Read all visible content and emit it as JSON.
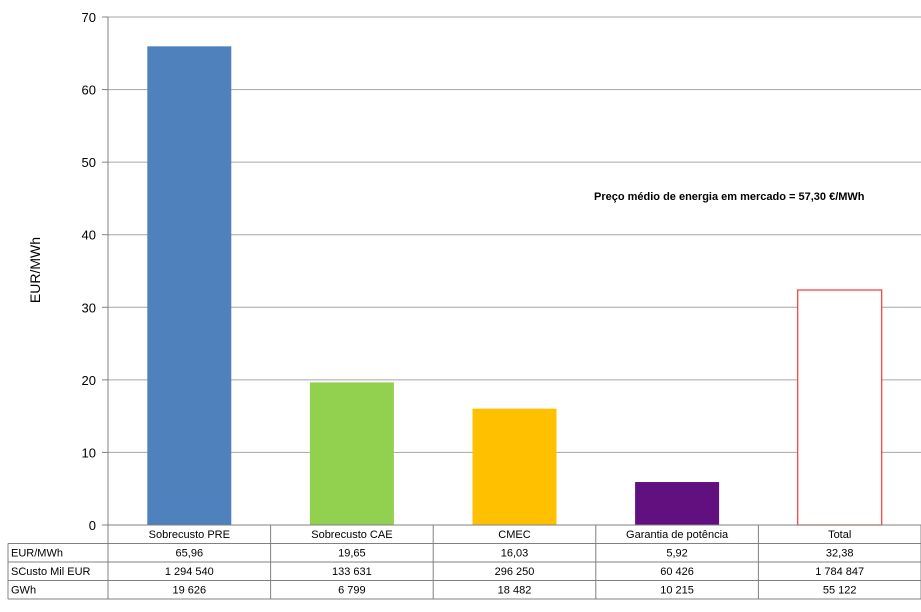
{
  "chart_data": {
    "type": "bar",
    "ylabel": "EUR/MWh",
    "ylim": [
      0,
      70
    ],
    "yticks": [
      0,
      10,
      20,
      30,
      40,
      50,
      60,
      70
    ],
    "grid": true,
    "categories": [
      "Sobrecusto PRE",
      "Sobrecusto CAE",
      "CMEC",
      "Garantia de potência",
      "Total"
    ],
    "values": [
      65.96,
      19.65,
      16.03,
      5.92,
      32.38
    ],
    "colors": [
      "#4f81bd",
      "#92d050",
      "#ffc000",
      "#60107f",
      "#ffffff"
    ],
    "total_outline_color": "#ff3333",
    "annotation": "Preço médio de energia em mercado = 57,30 €/MWh",
    "table": {
      "rows": [
        {
          "label": "EUR/MWh",
          "values": [
            "65,96",
            "19,65",
            "16,03",
            "5,92",
            "32,38"
          ]
        },
        {
          "label": "SCusto Mil EUR",
          "values": [
            "1 294 540",
            "133 631",
            "296 250",
            "60 426",
            "1 784 847"
          ]
        },
        {
          "label": "GWh",
          "values": [
            "19 626",
            "6 799",
            "18 482",
            "10 215",
            "55 122"
          ]
        }
      ]
    }
  }
}
